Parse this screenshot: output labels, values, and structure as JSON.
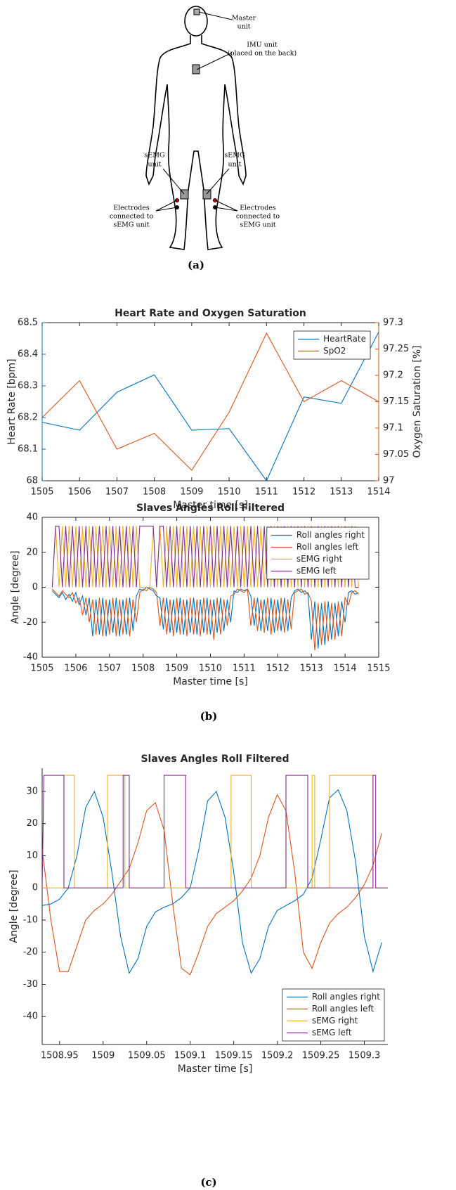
{
  "figure_a": {
    "labels": {
      "master_unit": [
        "Master",
        "unit"
      ],
      "imu_unit": [
        "IMU unit",
        "(placed on the back)"
      ],
      "semg_left": [
        "sEMG",
        "unit"
      ],
      "semg_right": [
        "sEMG",
        "unit"
      ],
      "electrodes_left": [
        "Electrodes",
        "connected to",
        "sEMG unit"
      ],
      "electrodes_right": [
        "Electrodes",
        "connected to",
        "sEMG unit"
      ]
    }
  },
  "captions": [
    "(a)",
    "(b)",
    "(c)"
  ],
  "chart_data": [
    {
      "type": "line",
      "title": "Heart Rate and Oxygen Saturation",
      "x_label": "Master time [s]",
      "y_label": "Heart Rate [bpm]",
      "y2_label": "Oxygen Saturation [%]",
      "ycolor": "#0072BD",
      "y2color": "#D95319",
      "x": [
        1505,
        1506,
        1507,
        1508,
        1509,
        1510,
        1511,
        1512,
        1513,
        1514
      ],
      "series": [
        {
          "name": "HeartRate",
          "color": "#0072BD",
          "values": [
            68.185,
            68.16,
            68.28,
            68.335,
            68.16,
            68.165,
            68.0,
            68.265,
            68.245,
            68.47
          ]
        },
        {
          "name": "SpO2",
          "color": "#D95319",
          "axis": "y2",
          "values": [
            97.12,
            97.19,
            97.06,
            97.09,
            97.02,
            97.13,
            97.28,
            97.15,
            97.19,
            97.15
          ]
        }
      ],
      "xlim": [
        1505,
        1514
      ],
      "xticks": [
        1505,
        1506,
        1507,
        1508,
        1509,
        1510,
        1511,
        1512,
        1513,
        1514
      ],
      "ylim": [
        68,
        68.5
      ],
      "yticks": [
        68,
        68.1,
        68.2,
        68.3,
        68.4,
        68.5
      ],
      "y2lim": [
        97,
        97.3
      ],
      "y2ticks": [
        97,
        97.05,
        97.1,
        97.15,
        97.2,
        97.25,
        97.3
      ],
      "legend": "upper right"
    },
    {
      "type": "line",
      "title": "Slaves Angles Roll Filtered",
      "x_label": "Master time [s]",
      "y_label": "Angle [degree]",
      "x": [
        1505.3,
        1505.4,
        1505.5,
        1505.6,
        1505.7,
        1505.8,
        1505.9,
        1506,
        1506.1,
        1506.2,
        1506.3,
        1506.4,
        1506.5,
        1506.6,
        1506.7,
        1506.8,
        1506.9,
        1507,
        1507.1,
        1507.2,
        1507.3,
        1507.4,
        1507.5,
        1507.6,
        1507.7,
        1507.8,
        1507.9,
        1508,
        1508.1,
        1508.2,
        1508.3,
        1508.4,
        1508.5,
        1508.6,
        1508.7,
        1508.8,
        1508.9,
        1509,
        1509.1,
        1509.2,
        1509.3,
        1509.4,
        1509.5,
        1509.6,
        1509.7,
        1509.8,
        1509.9,
        1510,
        1510.1,
        1510.2,
        1510.3,
        1510.4,
        1510.5,
        1510.6,
        1510.7,
        1510.8,
        1510.9,
        1511,
        1511.1,
        1511.2,
        1511.3,
        1511.4,
        1511.5,
        1511.6,
        1511.7,
        1511.8,
        1511.9,
        1512,
        1512.1,
        1512.2,
        1512.3,
        1512.4,
        1512.5,
        1512.6,
        1512.7,
        1512.8,
        1512.9,
        1513,
        1513.1,
        1513.2,
        1513.3,
        1513.4,
        1513.5,
        1513.6,
        1513.7,
        1513.8,
        1513.9,
        1514,
        1514.1,
        1514.2,
        1514.3,
        1514.4
      ],
      "series": [
        {
          "name": "Roll angles right",
          "color": "#0072BD",
          "values": [
            -2,
            -4,
            -6,
            -3,
            -7,
            -4,
            -8,
            -3,
            -10,
            -5,
            -16,
            -6,
            -28,
            -7,
            -27,
            -6,
            -28,
            -7,
            -26,
            -6,
            -28,
            -7,
            -27,
            -6,
            -25,
            -5,
            -1,
            -2,
            0,
            -1,
            -2,
            -5,
            -6,
            -24,
            -6,
            -26,
            -7,
            -26,
            -6,
            -27,
            -7,
            -26,
            -6,
            -27,
            -7,
            -26,
            -6,
            -27,
            -7,
            -26,
            -6,
            -25,
            -7,
            -20,
            -2,
            -3,
            -1,
            -2,
            -1,
            -5,
            -22,
            -6,
            -25,
            -7,
            -25,
            -6,
            -26,
            -7,
            -25,
            -6,
            -25,
            -6,
            -2,
            -1,
            -3,
            -2,
            -4,
            -30,
            -8,
            -35,
            -9,
            -33,
            -8,
            -30,
            -9,
            -28,
            -8,
            -20,
            -3,
            -2,
            -4,
            -3
          ]
        },
        {
          "name": "Roll angles left",
          "color": "#D95319",
          "values": [
            -1,
            -3,
            -5,
            -2,
            -4,
            -6,
            -3,
            -9,
            -6,
            -16,
            -6,
            -20,
            -7,
            -27,
            -6,
            -28,
            -7,
            -27,
            -6,
            -28,
            -7,
            -27,
            -6,
            -28,
            -7,
            -20,
            -3,
            -1,
            -2,
            0,
            -1,
            -3,
            -22,
            -6,
            -27,
            -7,
            -28,
            -6,
            -27,
            -7,
            -28,
            -6,
            -27,
            -7,
            -28,
            -6,
            -27,
            -7,
            -30,
            -6,
            -27,
            -7,
            -22,
            -5,
            -4,
            -1,
            -2,
            -3,
            -1,
            -22,
            -6,
            -25,
            -7,
            -26,
            -6,
            -27,
            -7,
            -25,
            -6,
            -26,
            -7,
            -24,
            -3,
            -2,
            -1,
            -4,
            -3,
            -8,
            -36,
            -9,
            -33,
            -8,
            -31,
            -9,
            -30,
            -8,
            -28,
            -6,
            -10,
            -3,
            -2,
            -4
          ]
        },
        {
          "name": "sEMG right",
          "color": "#EDB120",
          "values": [
            0,
            35,
            0,
            35,
            0,
            35,
            0,
            35,
            0,
            35,
            0,
            35,
            0,
            35,
            0,
            35,
            0,
            35,
            0,
            35,
            0,
            35,
            0,
            35,
            0,
            35,
            0,
            0,
            0,
            0,
            35,
            0,
            35,
            0,
            35,
            0,
            35,
            0,
            35,
            0,
            35,
            0,
            35,
            0,
            35,
            0,
            35,
            0,
            35,
            0,
            35,
            0,
            35,
            0,
            35,
            0,
            35,
            0,
            35,
            0,
            35,
            0,
            35,
            0,
            35,
            0,
            35,
            0,
            35,
            0,
            35,
            0,
            35,
            0,
            35,
            0,
            35,
            0,
            35,
            0,
            35,
            0,
            35,
            0,
            35,
            0,
            35,
            0,
            35,
            0,
            35,
            0
          ]
        },
        {
          "name": "sEMG left",
          "color": "#7E2F8E",
          "values": [
            0,
            35,
            35,
            0,
            35,
            0,
            35,
            0,
            35,
            0,
            35,
            0,
            35,
            0,
            35,
            0,
            35,
            0,
            35,
            0,
            35,
            0,
            35,
            0,
            35,
            0,
            35,
            35,
            35,
            35,
            35,
            0,
            35,
            35,
            0,
            35,
            0,
            35,
            0,
            35,
            0,
            35,
            0,
            35,
            0,
            35,
            0,
            35,
            0,
            35,
            0,
            35,
            0,
            35,
            0,
            35,
            0,
            35,
            0,
            35,
            0,
            35,
            0,
            35,
            0,
            35,
            0,
            35,
            0,
            35,
            0,
            35,
            0,
            35,
            0,
            35,
            0,
            35,
            0,
            35,
            0,
            35,
            0,
            35,
            0,
            35,
            0,
            35,
            0,
            35,
            0,
            0
          ]
        }
      ],
      "xlim": [
        1505,
        1515
      ],
      "xticks": [
        1505,
        1506,
        1507,
        1508,
        1509,
        1510,
        1511,
        1512,
        1513,
        1514,
        1515
      ],
      "ylim": [
        -40,
        40
      ],
      "yticks": [
        -40,
        -20,
        0,
        20,
        40
      ],
      "legend": "upper right"
    },
    {
      "type": "line",
      "title": "Slaves Angles Roll Filtered",
      "x_label": "Master time [s]",
      "y_label": "Angle [degree]",
      "x": [
        1508.93,
        1508.94,
        1508.95,
        1508.96,
        1508.97,
        1508.98,
        1508.99,
        1509,
        1509.01,
        1509.02,
        1509.03,
        1509.04,
        1509.05,
        1509.06,
        1509.07,
        1509.08,
        1509.09,
        1509.1,
        1509.11,
        1509.12,
        1509.13,
        1509.14,
        1509.15,
        1509.16,
        1509.17,
        1509.18,
        1509.19,
        1509.2,
        1509.21,
        1509.22,
        1509.23,
        1509.24,
        1509.25,
        1509.26,
        1509.27,
        1509.28,
        1509.29,
        1509.3,
        1509.31,
        1509.32
      ],
      "series": [
        {
          "name": "Roll angles right",
          "color": "#0072BD",
          "values": [
            -5.5,
            -5,
            -3.5,
            0,
            10,
            25,
            30,
            22,
            5,
            -15,
            -26.5,
            -22,
            -12,
            -7.5,
            -6,
            -5,
            -3,
            0,
            12,
            27,
            30,
            22,
            5,
            -17,
            -26.5,
            -22,
            -12,
            -7,
            -5.5,
            -4,
            -2,
            3,
            15,
            28,
            30.5,
            24,
            8,
            -15,
            -26,
            -17
          ]
        },
        {
          "name": "Roll angles left",
          "color": "#D95319",
          "values": [
            12,
            -10,
            -26,
            -26,
            -18,
            -10,
            -7,
            -5,
            -2,
            2,
            6,
            14,
            24,
            26.5,
            18,
            -5,
            -25,
            -27,
            -20,
            -12,
            -8,
            -6,
            -4,
            -1,
            3,
            10,
            22,
            29,
            24,
            5,
            -20,
            -25,
            -17,
            -11,
            -8,
            -6,
            -3,
            1,
            7,
            17
          ]
        },
        {
          "name": "sEMG right",
          "color": "#EDB120",
          "x": [
            1508.93,
            1508.955,
            1508.955,
            1508.967,
            1508.967,
            1509.005,
            1509.005,
            1509.025,
            1509.025,
            1509.147,
            1509.147,
            1509.17,
            1509.17,
            1509.24,
            1509.24,
            1509.243,
            1509.243,
            1509.26,
            1509.26,
            1509.31,
            1509.31,
            1509.327
          ],
          "values": [
            0,
            0,
            35,
            35,
            0,
            0,
            35,
            35,
            0,
            0,
            35,
            35,
            0,
            0,
            35,
            35,
            0,
            0,
            35,
            35,
            0,
            0
          ]
        },
        {
          "name": "sEMG left",
          "color": "#7E2F8E",
          "x": [
            1508.93,
            1508.932,
            1508.955,
            1508.955,
            1509.023,
            1509.023,
            1509.03,
            1509.03,
            1509.07,
            1509.07,
            1509.095,
            1509.095,
            1509.21,
            1509.21,
            1509.235,
            1509.235,
            1509.31,
            1509.31,
            1509.313,
            1509.313,
            1509.327
          ],
          "values": [
            0,
            35,
            35,
            0,
            0,
            35,
            35,
            0,
            0,
            35,
            35,
            0,
            0,
            35,
            35,
            0,
            0,
            35,
            35,
            0,
            0
          ]
        }
      ],
      "xlim": [
        1508.93,
        1509.327
      ],
      "xticks": [
        1508.95,
        1509,
        1509.05,
        1509.1,
        1509.15,
        1509.2,
        1509.25,
        1509.3
      ],
      "ylim": [
        -48.7,
        37.2
      ],
      "yticks": [
        -40,
        -30,
        -20,
        -10,
        0,
        10,
        20,
        30
      ],
      "legend": "lower right"
    }
  ]
}
